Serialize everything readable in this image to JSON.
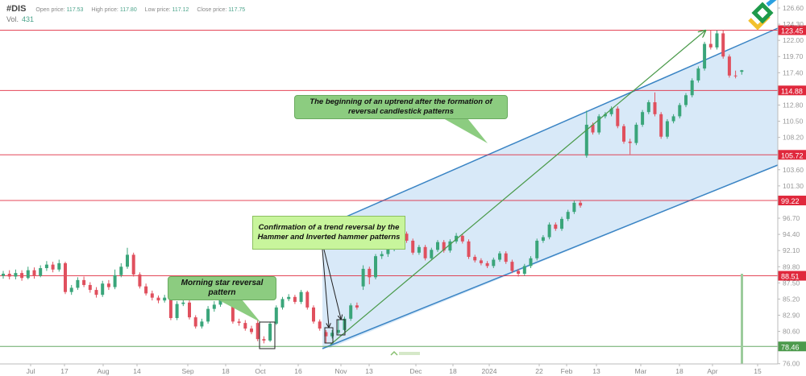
{
  "header": {
    "symbol": "#DIS",
    "open_label": "Open price:",
    "open": "117.53",
    "high_label": "High price:",
    "high": "117.80",
    "low_label": "Low price:",
    "low": "117.12",
    "close_label": "Close price:",
    "close": "117.75",
    "vol_label": "Vol.",
    "vol": "431"
  },
  "watermark": "LiteFinance",
  "annotations": {
    "uptrend": "The beginning of an uptrend after the formation of reversal candlestick patterns",
    "hammer": "Confirmation of a trend reversal by the Hammer and Inverted hammer patterns",
    "morning_star": "Morning star reversal pattern"
  },
  "colors": {
    "up": "#3aa57a",
    "down": "#e0505e",
    "level_red": "#e0283c",
    "level_green": "#4c9a4c",
    "channel": "#3a84c4",
    "channel_fill": "#d8e9f8",
    "arrow": "#4a9a4a"
  },
  "chart_data": {
    "type": "candlestick",
    "title": "",
    "ylim": [
      76.0,
      126.6
    ],
    "y_ticks": [
      "126.60",
      "124.30",
      "122.00",
      "119.70",
      "117.40",
      "112.80",
      "110.50",
      "108.20",
      "103.60",
      "101.30",
      "96.70",
      "94.40",
      "92.10",
      "89.80",
      "87.50",
      "85.20",
      "82.90",
      "80.60",
      "76.00"
    ],
    "x_ticks": [
      "Jul",
      "17",
      "Aug",
      "14",
      "Sep",
      "18",
      "Oct",
      "16",
      "Nov",
      "13",
      "Dec",
      "18",
      "2024",
      "22",
      "Feb",
      "13",
      "Mar",
      "18",
      "Apr",
      "15"
    ],
    "levels": [
      {
        "value": "123.45",
        "color": "red"
      },
      {
        "value": "114.88",
        "color": "red"
      },
      {
        "value": "105.72",
        "color": "red"
      },
      {
        "value": "99.22",
        "color": "red"
      },
      {
        "value": "88.51",
        "color": "red"
      },
      {
        "value": "78.46",
        "color": "green"
      }
    ],
    "volume_last": 431,
    "ohlc": [
      [
        88.5,
        89.2,
        88.1,
        88.8
      ],
      [
        88.8,
        89.3,
        88.0,
        88.4
      ],
      [
        88.4,
        89.4,
        88.0,
        88.9
      ],
      [
        88.9,
        89.3,
        87.8,
        88.2
      ],
      [
        88.2,
        89.8,
        88.0,
        89.3
      ],
      [
        89.3,
        89.7,
        88.1,
        88.5
      ],
      [
        88.5,
        90.0,
        88.3,
        89.6
      ],
      [
        89.6,
        90.6,
        89.2,
        90.1
      ],
      [
        90.1,
        90.5,
        89.0,
        89.4
      ],
      [
        89.4,
        90.8,
        89.1,
        90.3
      ],
      [
        90.3,
        90.5,
        85.9,
        86.2
      ],
      [
        86.2,
        87.2,
        85.8,
        86.8
      ],
      [
        86.8,
        88.3,
        86.5,
        87.9
      ],
      [
        87.9,
        88.4,
        86.9,
        87.2
      ],
      [
        87.2,
        87.6,
        86.1,
        86.5
      ],
      [
        86.5,
        86.9,
        85.4,
        85.8
      ],
      [
        85.8,
        87.8,
        85.5,
        87.4
      ],
      [
        87.4,
        87.9,
        86.5,
        86.9
      ],
      [
        86.9,
        89.4,
        86.6,
        88.6
      ],
      [
        88.6,
        90.3,
        88.3,
        89.8
      ],
      [
        89.8,
        92.5,
        89.5,
        91.5
      ],
      [
        91.5,
        91.8,
        88.4,
        88.7
      ],
      [
        88.7,
        89.0,
        86.7,
        87.0
      ],
      [
        87.0,
        87.4,
        85.7,
        86.0
      ],
      [
        86.0,
        86.4,
        85.0,
        85.4
      ],
      [
        85.4,
        85.7,
        84.6,
        85.0
      ],
      [
        85.0,
        85.8,
        84.7,
        85.4
      ],
      [
        85.4,
        85.6,
        82.2,
        82.5
      ],
      [
        82.5,
        84.9,
        82.2,
        84.5
      ],
      [
        84.5,
        85.1,
        84.2,
        84.7
      ],
      [
        84.7,
        85.0,
        82.3,
        82.6
      ],
      [
        82.6,
        82.9,
        81.0,
        81.3
      ],
      [
        81.3,
        82.4,
        81.0,
        82.0
      ],
      [
        82.0,
        84.2,
        81.7,
        83.8
      ],
      [
        83.8,
        84.9,
        83.4,
        84.4
      ],
      [
        84.4,
        85.8,
        84.1,
        85.3
      ],
      [
        85.3,
        85.6,
        84.5,
        84.9
      ],
      [
        84.9,
        85.2,
        81.7,
        82.0
      ],
      [
        82.0,
        82.4,
        81.4,
        81.8
      ],
      [
        81.8,
        82.2,
        80.7,
        81.0
      ],
      [
        81.0,
        81.4,
        80.2,
        80.5
      ],
      [
        81.8,
        82.2,
        79.2,
        79.5
      ],
      [
        79.5,
        79.9,
        78.9,
        79.3
      ],
      [
        79.3,
        81.9,
        79.1,
        81.7
      ],
      [
        81.7,
        84.3,
        81.5,
        84.0
      ],
      [
        84.0,
        85.5,
        83.7,
        85.2
      ],
      [
        85.2,
        85.9,
        84.9,
        85.5
      ],
      [
        85.5,
        85.8,
        84.5,
        84.8
      ],
      [
        84.8,
        86.5,
        84.5,
        86.2
      ],
      [
        86.2,
        86.4,
        83.7,
        84.0
      ],
      [
        84.0,
        84.3,
        81.7,
        82.0
      ],
      [
        82.0,
        82.3,
        80.7,
        81.0
      ],
      [
        80.5,
        80.8,
        78.9,
        79.9
      ],
      [
        79.9,
        80.8,
        79.6,
        80.4
      ],
      [
        80.4,
        82.3,
        80.2,
        80.8
      ],
      [
        80.8,
        82.7,
        80.6,
        82.4
      ],
      [
        82.4,
        84.6,
        82.1,
        84.3
      ],
      [
        84.3,
        84.7,
        83.7,
        84.0
      ],
      [
        87.0,
        90.0,
        86.5,
        89.5
      ],
      [
        89.5,
        89.8,
        87.3,
        88.3
      ],
      [
        88.3,
        91.6,
        88.0,
        91.3
      ],
      [
        91.3,
        92.0,
        90.9,
        91.6
      ],
      [
        91.6,
        92.6,
        91.2,
        92.3
      ],
      [
        92.3,
        93.8,
        92.0,
        93.5
      ],
      [
        93.5,
        95.0,
        93.2,
        94.5
      ],
      [
        94.5,
        94.8,
        93.2,
        93.5
      ],
      [
        93.5,
        93.8,
        91.5,
        91.8
      ],
      [
        91.8,
        92.9,
        91.5,
        92.6
      ],
      [
        92.6,
        92.9,
        90.7,
        91.0
      ],
      [
        91.0,
        92.5,
        90.8,
        92.2
      ],
      [
        92.2,
        93.6,
        91.9,
        93.3
      ],
      [
        93.3,
        93.6,
        91.8,
        92.1
      ],
      [
        92.1,
        93.7,
        91.8,
        93.4
      ],
      [
        93.4,
        94.6,
        93.1,
        94.2
      ],
      [
        94.2,
        94.5,
        93.1,
        93.4
      ],
      [
        93.4,
        93.7,
        90.9,
        91.2
      ],
      [
        91.2,
        91.5,
        90.4,
        90.7
      ],
      [
        90.7,
        91.0,
        90.0,
        90.3
      ],
      [
        90.3,
        90.6,
        89.6,
        89.9
      ],
      [
        89.9,
        91.1,
        89.6,
        90.8
      ],
      [
        90.8,
        92.0,
        90.5,
        91.7
      ],
      [
        91.7,
        92.0,
        90.2,
        90.5
      ],
      [
        90.5,
        90.8,
        88.9,
        89.2
      ],
      [
        89.2,
        89.5,
        88.4,
        88.8
      ],
      [
        88.8,
        90.2,
        88.5,
        89.9
      ],
      [
        89.9,
        91.3,
        89.6,
        91.0
      ],
      [
        91.0,
        93.8,
        90.7,
        93.5
      ],
      [
        93.5,
        94.3,
        93.2,
        94.0
      ],
      [
        94.0,
        96.1,
        93.7,
        95.8
      ],
      [
        95.8,
        96.1,
        94.9,
        95.2
      ],
      [
        95.2,
        96.9,
        94.9,
        96.6
      ],
      [
        96.6,
        97.9,
        96.3,
        97.6
      ],
      [
        97.6,
        99.2,
        97.3,
        98.9
      ],
      [
        98.9,
        99.2,
        98.2,
        98.5
      ],
      [
        105.6,
        112.0,
        105.3,
        110.0
      ],
      [
        110.0,
        110.3,
        108.6,
        108.9
      ],
      [
        108.9,
        111.5,
        108.6,
        111.2
      ],
      [
        111.2,
        111.8,
        110.9,
        111.5
      ],
      [
        111.5,
        112.6,
        111.2,
        112.3
      ],
      [
        112.3,
        112.6,
        109.5,
        109.8
      ],
      [
        109.8,
        110.1,
        107.3,
        107.6
      ],
      [
        107.6,
        108.0,
        105.8,
        107.4
      ],
      [
        107.4,
        110.3,
        107.1,
        110.0
      ],
      [
        110.0,
        112.1,
        109.7,
        111.8
      ],
      [
        111.8,
        113.5,
        111.5,
        113.2
      ],
      [
        113.2,
        114.6,
        111.2,
        111.5
      ],
      [
        111.5,
        111.8,
        108.0,
        108.3
      ],
      [
        108.3,
        110.8,
        108.0,
        110.5
      ],
      [
        110.5,
        111.5,
        110.2,
        111.2
      ],
      [
        111.2,
        113.1,
        110.9,
        112.8
      ],
      [
        112.8,
        114.5,
        112.5,
        114.2
      ],
      [
        114.2,
        116.6,
        113.9,
        116.3
      ],
      [
        116.3,
        118.3,
        116.0,
        118.0
      ],
      [
        118.0,
        121.8,
        117.7,
        121.5
      ],
      [
        121.5,
        123.4,
        120.7,
        121.0
      ],
      [
        121.0,
        123.4,
        120.7,
        123.0
      ],
      [
        123.0,
        123.4,
        119.4,
        119.7
      ],
      [
        119.7,
        120.0,
        116.7,
        117.0
      ],
      [
        117.0,
        117.7,
        116.6,
        116.9
      ],
      [
        117.53,
        117.8,
        117.12,
        117.75
      ]
    ]
  }
}
